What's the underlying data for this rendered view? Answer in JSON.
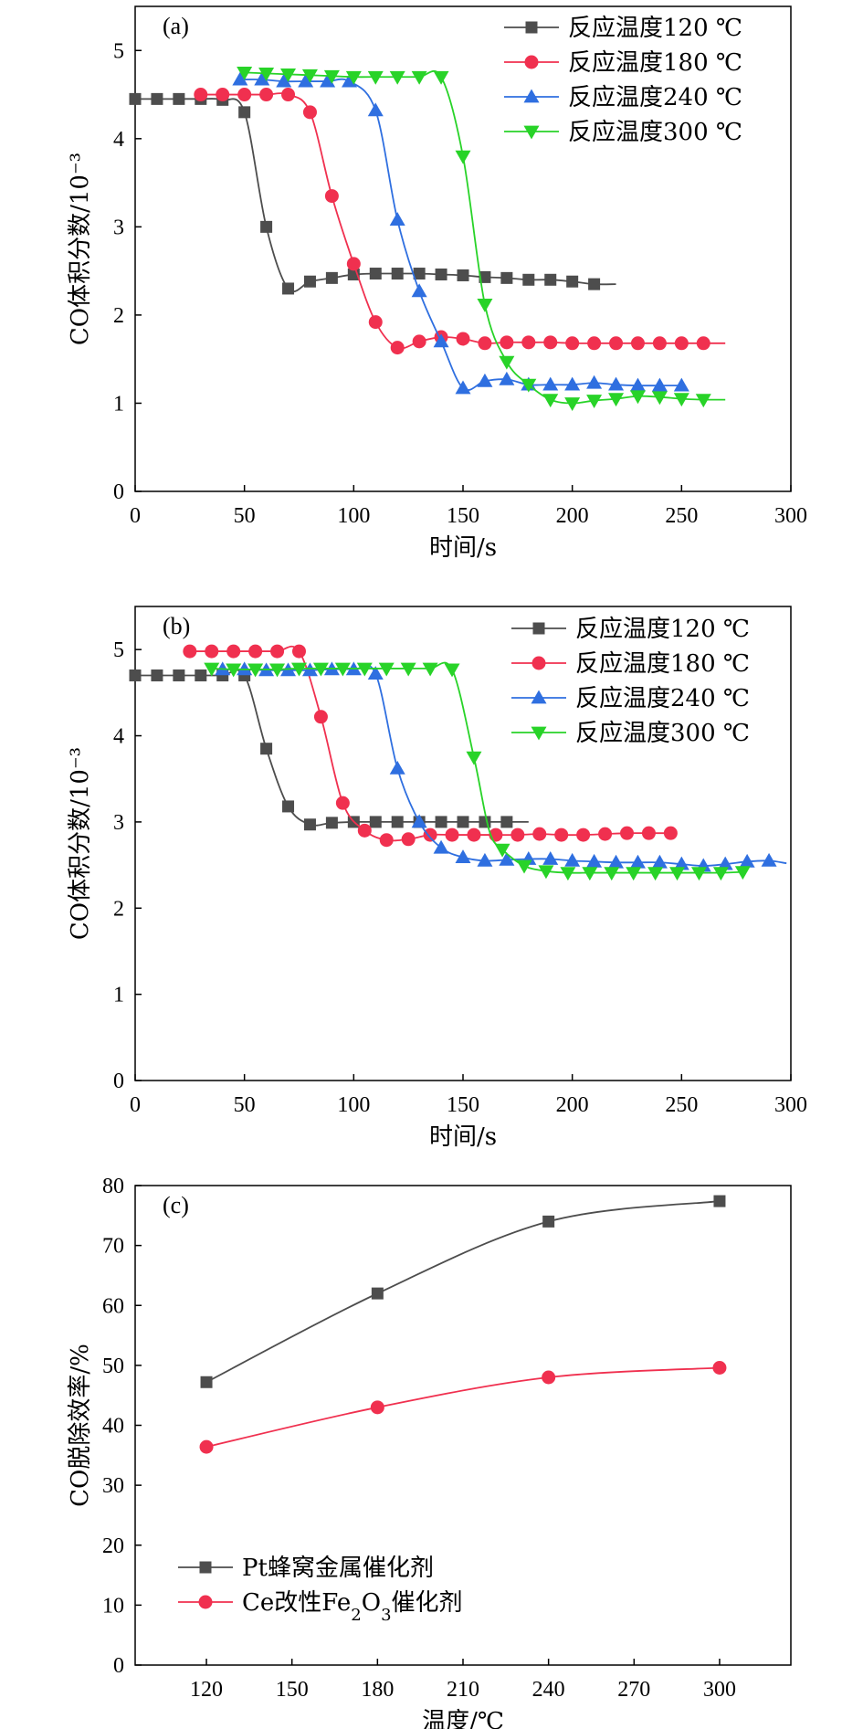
{
  "chart_data": [
    {
      "panel": "(a)",
      "type": "line",
      "xlabel": "时间/s",
      "ylabel": "CO体积分数/10⁻³",
      "xlim": [
        0,
        300
      ],
      "ylim": [
        0,
        5.5
      ],
      "xticks": [
        0,
        50,
        100,
        150,
        200,
        250,
        300
      ],
      "yticks": [
        0,
        1,
        2,
        3,
        4,
        5
      ],
      "legend_position": "top-right",
      "series": [
        {
          "name": "反应温度120 ℃",
          "color": "#4d4d4d",
          "marker": "square",
          "x": [
            0,
            10,
            20,
            30,
            40,
            50,
            60,
            70,
            80,
            90,
            100,
            110,
            120,
            130,
            140,
            150,
            160,
            170,
            180,
            190,
            200,
            210,
            220
          ],
          "y": [
            4.45,
            4.45,
            4.45,
            4.45,
            4.44,
            4.3,
            3.0,
            2.3,
            2.38,
            2.42,
            2.46,
            2.47,
            2.47,
            2.47,
            2.46,
            2.45,
            2.43,
            2.42,
            2.4,
            2.4,
            2.38,
            2.35,
            2.35
          ],
          "markers": [
            0,
            1,
            2,
            3,
            4,
            5,
            6,
            7,
            8,
            9,
            10,
            11,
            12,
            13,
            14,
            15,
            16,
            17,
            18,
            19,
            20,
            21
          ]
        },
        {
          "name": "反应温度180 ℃",
          "color": "#f0304f",
          "marker": "circle",
          "x": [
            30,
            40,
            50,
            60,
            70,
            80,
            90,
            100,
            110,
            120,
            130,
            140,
            150,
            160,
            170,
            180,
            190,
            200,
            210,
            220,
            230,
            240,
            250,
            260,
            270
          ],
          "y": [
            4.5,
            4.5,
            4.5,
            4.5,
            4.5,
            4.3,
            3.35,
            2.58,
            1.92,
            1.63,
            1.7,
            1.75,
            1.73,
            1.68,
            1.69,
            1.69,
            1.69,
            1.68,
            1.68,
            1.68,
            1.68,
            1.68,
            1.68,
            1.68,
            1.68
          ],
          "markers": [
            0,
            1,
            2,
            3,
            4,
            5,
            6,
            7,
            8,
            9,
            10,
            11,
            12,
            13,
            14,
            15,
            16,
            17,
            18,
            19,
            20,
            21,
            22,
            23
          ]
        },
        {
          "name": "反应温度240 ℃",
          "color": "#2f6fe0",
          "marker": "triangle-up",
          "x": [
            48,
            58,
            68,
            78,
            88,
            98,
            110,
            120,
            130,
            140,
            150,
            160,
            170,
            180,
            190,
            200,
            210,
            220,
            230,
            240,
            250
          ],
          "y": [
            4.67,
            4.67,
            4.65,
            4.65,
            4.65,
            4.65,
            4.32,
            3.08,
            2.27,
            1.7,
            1.17,
            1.25,
            1.27,
            1.21,
            1.21,
            1.21,
            1.23,
            1.21,
            1.2,
            1.2,
            1.2
          ],
          "markers": [
            0,
            1,
            2,
            3,
            4,
            5,
            6,
            7,
            8,
            9,
            10,
            11,
            12,
            13,
            14,
            15,
            16,
            17,
            18,
            19,
            20
          ]
        },
        {
          "name": "反应温度300 ℃",
          "color": "#28d328",
          "marker": "triangle-down",
          "x": [
            50,
            60,
            70,
            80,
            90,
            100,
            110,
            120,
            130,
            140,
            150,
            160,
            170,
            180,
            190,
            200,
            210,
            220,
            230,
            240,
            250,
            260,
            270
          ],
          "y": [
            4.75,
            4.74,
            4.73,
            4.72,
            4.71,
            4.7,
            4.7,
            4.7,
            4.7,
            4.7,
            3.8,
            2.12,
            1.47,
            1.21,
            1.04,
            1.0,
            1.03,
            1.05,
            1.08,
            1.07,
            1.05,
            1.04,
            1.04
          ],
          "markers": [
            0,
            1,
            2,
            3,
            4,
            5,
            6,
            7,
            8,
            9,
            10,
            11,
            12,
            13,
            14,
            15,
            16,
            17,
            18,
            19,
            20,
            21
          ]
        }
      ]
    },
    {
      "panel": "(b)",
      "type": "line",
      "xlabel": "时间/s",
      "ylabel": "CO体积分数/10⁻³",
      "xlim": [
        0,
        300
      ],
      "ylim": [
        0,
        5.5
      ],
      "xticks": [
        0,
        50,
        100,
        150,
        200,
        250,
        300
      ],
      "yticks": [
        0,
        1,
        2,
        3,
        4,
        5
      ],
      "legend_position": "top-right",
      "series": [
        {
          "name": "反应温度120 ℃",
          "color": "#4d4d4d",
          "marker": "square",
          "x": [
            0,
            10,
            20,
            30,
            40,
            50,
            60,
            70,
            80,
            90,
            100,
            110,
            120,
            130,
            140,
            150,
            160,
            170,
            180
          ],
          "y": [
            4.7,
            4.7,
            4.7,
            4.7,
            4.7,
            4.7,
            3.85,
            3.18,
            2.97,
            2.99,
            3.0,
            3.0,
            3.0,
            3.0,
            3.0,
            3.0,
            3.0,
            3.0,
            3.0
          ],
          "markers": [
            0,
            1,
            2,
            3,
            4,
            5,
            6,
            7,
            8,
            9,
            10,
            11,
            12,
            13,
            14,
            15,
            16,
            17
          ]
        },
        {
          "name": "反应温度180 ℃",
          "color": "#f0304f",
          "marker": "circle",
          "x": [
            25,
            35,
            45,
            55,
            65,
            75,
            85,
            95,
            105,
            115,
            125,
            135,
            145,
            155,
            165,
            175,
            185,
            195,
            205,
            215,
            225,
            235,
            245
          ],
          "y": [
            4.98,
            4.98,
            4.98,
            4.98,
            4.98,
            4.98,
            4.22,
            3.22,
            2.9,
            2.79,
            2.8,
            2.85,
            2.85,
            2.85,
            2.85,
            2.85,
            2.86,
            2.85,
            2.85,
            2.86,
            2.87,
            2.87,
            2.87
          ],
          "markers": [
            0,
            1,
            2,
            3,
            4,
            5,
            6,
            7,
            8,
            9,
            10,
            11,
            12,
            13,
            14,
            15,
            16,
            17,
            18,
            19,
            20,
            21,
            22
          ]
        },
        {
          "name": "反应温度240 ℃",
          "color": "#2f6fe0",
          "marker": "triangle-up",
          "x": [
            40,
            50,
            60,
            70,
            80,
            90,
            100,
            110,
            120,
            130,
            140,
            150,
            160,
            170,
            180,
            190,
            200,
            210,
            220,
            230,
            240,
            250,
            260,
            270,
            280,
            290,
            298
          ],
          "y": [
            4.77,
            4.77,
            4.76,
            4.76,
            4.76,
            4.77,
            4.77,
            4.72,
            3.62,
            3.0,
            2.7,
            2.59,
            2.55,
            2.56,
            2.57,
            2.57,
            2.55,
            2.54,
            2.53,
            2.53,
            2.53,
            2.51,
            2.49,
            2.51,
            2.54,
            2.55,
            2.52
          ],
          "markers": [
            0,
            1,
            2,
            3,
            4,
            5,
            6,
            7,
            8,
            9,
            10,
            11,
            12,
            13,
            14,
            15,
            16,
            17,
            18,
            19,
            20,
            21,
            22,
            23,
            24,
            25
          ]
        },
        {
          "name": "反应温度300 ℃",
          "color": "#28d328",
          "marker": "triangle-down",
          "x": [
            35,
            45,
            55,
            65,
            75,
            85,
            95,
            105,
            115,
            125,
            135,
            145,
            155,
            162,
            168,
            178,
            188,
            198,
            208,
            218,
            228,
            238,
            248,
            258,
            268,
            278
          ],
          "y": [
            4.78,
            4.77,
            4.77,
            4.77,
            4.78,
            4.78,
            4.78,
            4.78,
            4.78,
            4.78,
            4.78,
            4.77,
            3.75,
            2.9,
            2.68,
            2.49,
            2.43,
            2.41,
            2.41,
            2.41,
            2.41,
            2.41,
            2.41,
            2.41,
            2.41,
            2.42
          ],
          "markers": [
            0,
            1,
            2,
            3,
            4,
            5,
            6,
            7,
            8,
            9,
            10,
            11,
            12,
            14,
            15,
            16,
            17,
            18,
            19,
            20,
            21,
            22,
            23,
            24,
            25
          ]
        }
      ]
    },
    {
      "panel": "(c)",
      "type": "line",
      "xlabel": "温度/℃",
      "ylabel": "CO脱除效率/%",
      "xlim": [
        95,
        325
      ],
      "ylim": [
        0,
        80
      ],
      "xticks": [
        120,
        150,
        180,
        210,
        240,
        270,
        300
      ],
      "yticks": [
        0,
        10,
        20,
        30,
        40,
        50,
        60,
        70,
        80
      ],
      "legend_position": "bottom-left",
      "series": [
        {
          "name": "Pt蜂窝金属催化剂",
          "color": "#4d4d4d",
          "marker": "square",
          "x": [
            120,
            180,
            240,
            300
          ],
          "y": [
            47.2,
            62.0,
            74.0,
            77.4
          ]
        },
        {
          "name_prefix": "Ce改性Fe",
          "name_sub1": "2",
          "name_mid": "O",
          "name_sub2": "3",
          "name_suffix": "催化剂",
          "color": "#f0304f",
          "marker": "circle",
          "x": [
            120,
            180,
            240,
            300
          ],
          "y": [
            36.4,
            43.0,
            48.0,
            49.6
          ]
        }
      ]
    }
  ]
}
